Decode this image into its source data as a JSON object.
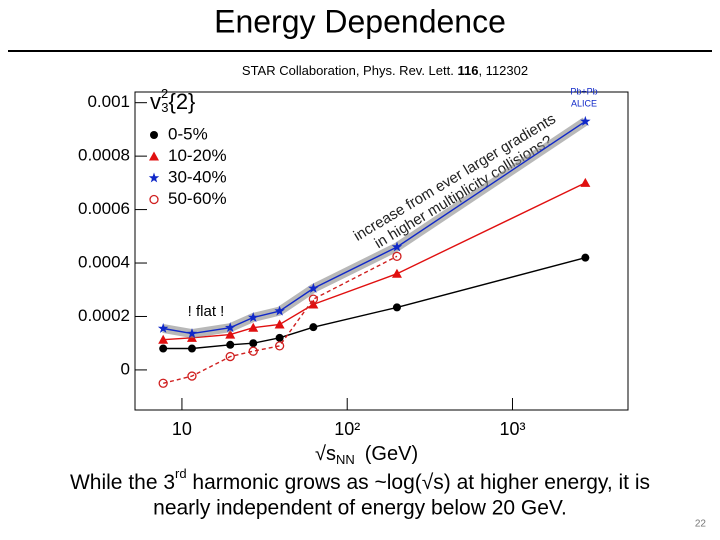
{
  "header": {
    "title": "Energy Dependence"
  },
  "chart_data": {
    "type": "line",
    "source": {
      "before": "STAR Collaboration, Phys. Rev. Lett. ",
      "bold": "116",
      "after": ", 112302"
    },
    "ylabel": {
      "base": "v",
      "sup": "2",
      "sub": "3",
      "rest": "{2}"
    },
    "xlabel": {
      "base": "√s",
      "sub": "NN",
      "rest": "(GeV)"
    },
    "xscale": "log",
    "x": [
      7.7,
      11.5,
      19.6,
      27,
      39,
      62.4,
      200,
      2760
    ],
    "series": [
      {
        "name": "0-5%",
        "color": "#000000",
        "marker": "circle",
        "values": [
          8e-05,
          8e-05,
          9.4e-05,
          0.0001,
          0.00012,
          0.00016,
          0.000234,
          0.00042
        ]
      },
      {
        "name": "10-20%",
        "color": "#e01010",
        "marker": "triangle",
        "values": [
          0.000113,
          0.00012,
          0.000132,
          0.000158,
          0.00017,
          0.000245,
          0.00036,
          0.0007
        ]
      },
      {
        "name": "30-40%",
        "color": "#1028c8",
        "marker": "star",
        "values": [
          0.000155,
          0.000136,
          0.000158,
          0.000196,
          0.00022,
          0.000305,
          0.00046,
          0.00093
        ]
      },
      {
        "name": "50-60%",
        "color": "#d02020",
        "marker": "open-circle",
        "values": [
          -5e-05,
          -2.3e-05,
          5e-05,
          7e-05,
          9e-05,
          0.000265,
          0.000425,
          null
        ]
      }
    ],
    "xlim": [
      5.2,
      5000
    ],
    "ylim": [
      -0.00015,
      0.00104
    ],
    "xticks": [
      10,
      {
        "value": 100,
        "label": "10²"
      },
      {
        "value": 1000,
        "label": "10³"
      }
    ],
    "yticks": [
      0,
      0.0002,
      0.0004,
      0.0006,
      0.0008,
      0.001
    ],
    "grid": false,
    "annotations": {
      "alice_1": "Pb+Pb",
      "alice_2": "ALICE",
      "flat": "! flat !",
      "gradient_1": "increase from ever larger gradients",
      "gradient_2": "in higher multiplicity collisions?"
    }
  },
  "caption": {
    "part1": "While the 3",
    "sup": "rd",
    "part2": " harmonic grows as ~log(√s) at higher energy, it is",
    "line2": "nearly independent of energy below 20 GeV."
  },
  "page_number": "22"
}
